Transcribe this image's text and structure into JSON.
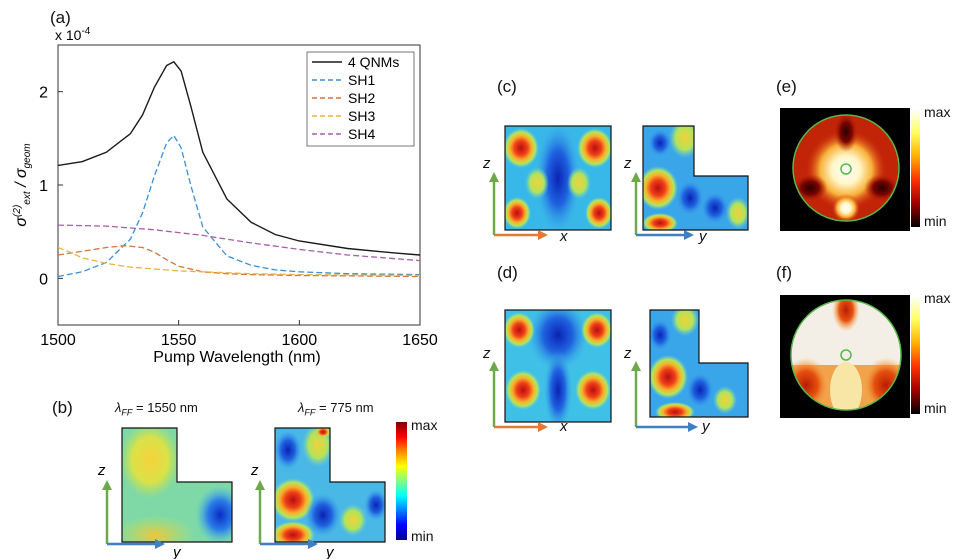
{
  "panels": {
    "a": "(a)",
    "b": "(b)",
    "c": "(c)",
    "d": "(d)",
    "e": "(e)",
    "f": "(f)"
  },
  "chart_data": {
    "type": "line",
    "scale_label": "x 10",
    "scale_exp": "-4",
    "xlabel": "Pump Wavelength (nm)",
    "ylabel_parts": {
      "sigma": "σ",
      "sup": "(2)",
      "sub1": "ext",
      "slash": " / σ",
      "sub2": "geom"
    },
    "xlim": [
      1500,
      1650
    ],
    "ylim": [
      -0.5,
      2.5
    ],
    "xticks": [
      "1500",
      "1550",
      "1600",
      "1650"
    ],
    "yticks": [
      "0",
      "1",
      "2"
    ],
    "legend_position": "top-right",
    "series": [
      {
        "name": "4 QNMs",
        "color": "#1a1a1a",
        "dash": false,
        "x": [
          1500,
          1510,
          1520,
          1530,
          1535,
          1540,
          1545,
          1548,
          1551,
          1555,
          1560,
          1570,
          1580,
          1590,
          1600,
          1620,
          1640,
          1650
        ],
        "y": [
          1.21,
          1.25,
          1.35,
          1.55,
          1.75,
          2.05,
          2.28,
          2.32,
          2.22,
          1.85,
          1.35,
          0.85,
          0.6,
          0.47,
          0.4,
          0.32,
          0.27,
          0.25
        ]
      },
      {
        "name": "SH1",
        "color": "#3c8fd1",
        "dash": true,
        "x": [
          1500,
          1510,
          1520,
          1530,
          1535,
          1540,
          1545,
          1548,
          1551,
          1555,
          1560,
          1570,
          1580,
          1590,
          1600,
          1620,
          1650
        ],
        "y": [
          0.02,
          0.07,
          0.17,
          0.42,
          0.7,
          1.1,
          1.45,
          1.53,
          1.4,
          1.0,
          0.55,
          0.24,
          0.14,
          0.09,
          0.07,
          0.05,
          0.04
        ]
      },
      {
        "name": "SH2",
        "color": "#d9733a",
        "dash": true,
        "x": [
          1500,
          1510,
          1520,
          1528,
          1535,
          1540,
          1545,
          1550,
          1560,
          1570,
          1580,
          1600,
          1650
        ],
        "y": [
          0.25,
          0.29,
          0.33,
          0.35,
          0.33,
          0.28,
          0.2,
          0.13,
          0.07,
          0.05,
          0.04,
          0.03,
          0.02
        ]
      },
      {
        "name": "SH3",
        "color": "#e8b43c",
        "dash": true,
        "x": [
          1500,
          1505,
          1510,
          1520,
          1530,
          1540,
          1550,
          1560,
          1580,
          1600,
          1650
        ],
        "y": [
          0.33,
          0.28,
          0.22,
          0.16,
          0.12,
          0.1,
          0.08,
          0.07,
          0.05,
          0.04,
          0.03
        ]
      },
      {
        "name": "SH4",
        "color": "#a65ea8",
        "dash": true,
        "x": [
          1500,
          1520,
          1540,
          1560,
          1580,
          1600,
          1620,
          1650
        ],
        "y": [
          0.57,
          0.56,
          0.52,
          0.46,
          0.38,
          0.31,
          0.25,
          0.19
        ]
      }
    ]
  },
  "panel_b": {
    "label1": {
      "lambda": "λ",
      "sub": "FF",
      "value": " = 1550 nm"
    },
    "label2": {
      "lambda": "λ",
      "sub": "FF",
      "value": " = 775 nm"
    },
    "colorbar": {
      "max": "max",
      "min": "min"
    }
  },
  "axes": {
    "x": "x",
    "y": "y",
    "z": "z"
  },
  "panel_e": {
    "max": "max",
    "min": "min"
  },
  "panel_f": {
    "max": "max",
    "min": "min"
  },
  "colors": {
    "z_arrow": "#6fa84a",
    "x_arrow": "#e07b30",
    "y_arrow": "#3f7fc4",
    "ring": "#58b849"
  }
}
